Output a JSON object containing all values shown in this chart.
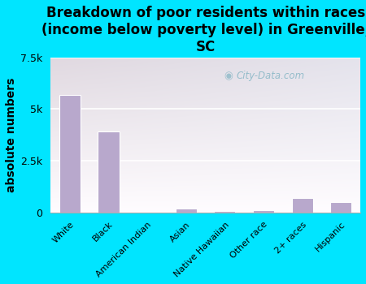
{
  "title": "Breakdown of poor residents within races\n(income below poverty level) in Greenville,\nSC",
  "ylabel": "absolute numbers",
  "categories": [
    "White",
    "Black",
    "American Indian",
    "Asian",
    "Native Hawaiian",
    "Other race",
    "2+ races",
    "Hispanic"
  ],
  "values": [
    5700,
    3900,
    0,
    200,
    80,
    100,
    700,
    500
  ],
  "bar_color": "#b8a8cc",
  "background_outer": "#00e5ff",
  "ylim": [
    0,
    7500
  ],
  "yticks": [
    0,
    2500,
    5000,
    7500
  ],
  "ytick_labels": [
    "0",
    "2.5k",
    "5k",
    "7.5k"
  ],
  "watermark": "City-Data.com",
  "title_fontsize": 12,
  "ylabel_fontsize": 10,
  "grid_color": "#ffffff"
}
